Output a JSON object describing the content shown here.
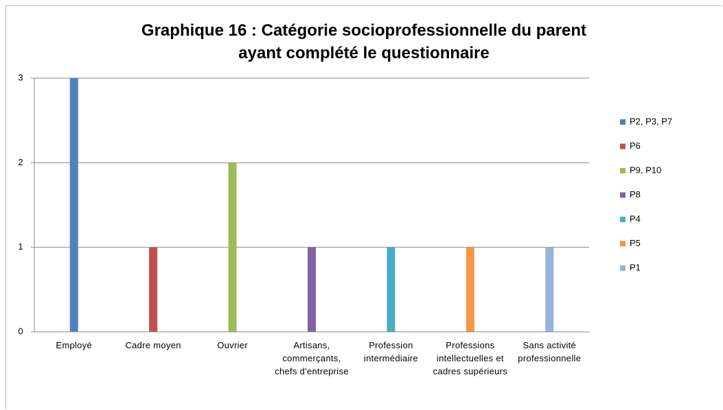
{
  "chart_data": {
    "type": "bar",
    "title": "Graphique 16 : Catégorie socioprofessionnelle du parent ayant complété le questionnaire",
    "categories": [
      "Employé",
      "Cadre moyen",
      "Ouvrier",
      "Artisans, commerçants, chefs d'entreprise",
      "Profession intermédiaire",
      "Professions intellectuelles et cadres supérieurs",
      "Sans activité professionnelle"
    ],
    "series": [
      {
        "name": "P2, P3, P7",
        "color": "#4f81bd",
        "values": [
          3,
          null,
          null,
          null,
          null,
          null,
          null
        ]
      },
      {
        "name": "P6",
        "color": "#c0504d",
        "values": [
          null,
          1,
          null,
          null,
          null,
          null,
          null
        ]
      },
      {
        "name": "P9, P10",
        "color": "#9bbb59",
        "values": [
          null,
          null,
          2,
          null,
          null,
          null,
          null
        ]
      },
      {
        "name": "P8",
        "color": "#8064a2",
        "values": [
          null,
          null,
          null,
          1,
          null,
          null,
          null
        ]
      },
      {
        "name": "P4",
        "color": "#4bacc6",
        "values": [
          null,
          null,
          null,
          null,
          1,
          null,
          null
        ]
      },
      {
        "name": "P5",
        "color": "#f79646",
        "values": [
          null,
          null,
          null,
          null,
          null,
          1,
          null
        ]
      },
      {
        "name": "P1",
        "color": "#95b3d7",
        "values": [
          null,
          null,
          null,
          null,
          null,
          null,
          1
        ]
      }
    ],
    "ylim": [
      0,
      3
    ],
    "yticks": [
      0,
      1,
      2,
      3
    ],
    "grid": true,
    "legend": "right"
  }
}
